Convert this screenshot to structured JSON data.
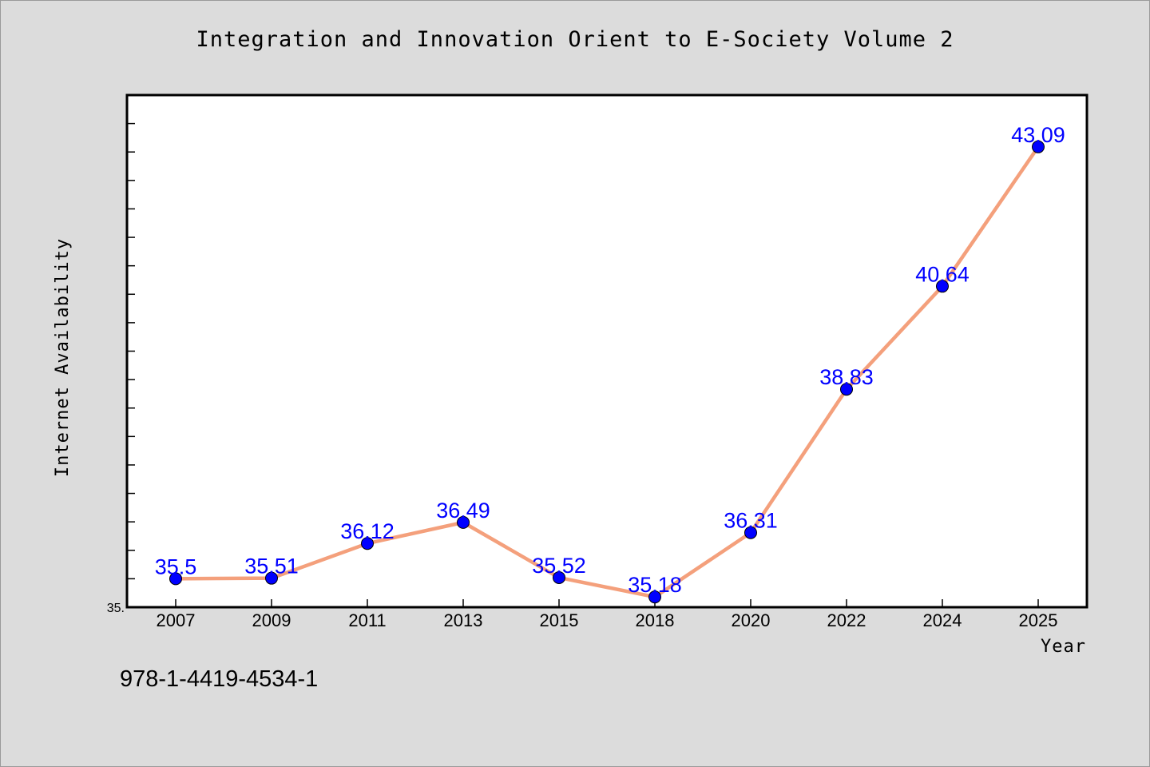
{
  "chart_data": {
    "type": "line",
    "title": "Integration and Innovation Orient to E-Society Volume 2",
    "xlabel": "Year",
    "ylabel": "Internet Availability",
    "categories": [
      "2007",
      "2009",
      "2011",
      "2013",
      "2015",
      "2018",
      "2020",
      "2022",
      "2024",
      "2025"
    ],
    "series": [
      {
        "values": [
          35.5,
          35.51,
          36.12,
          36.49,
          35.52,
          35.18,
          36.31,
          38.83,
          40.64,
          43.09
        ],
        "labels": [
          "35.5",
          "35.51",
          "36.12",
          "36.49",
          "35.52",
          "35.18",
          "36.31",
          "38.83",
          "40.64",
          "43.09"
        ]
      }
    ],
    "ylim": [
      35.0,
      44.0
    ],
    "y_tick_label": "35.",
    "grid": false,
    "line_color": "#f4a07c",
    "marker_color": "#0000ff",
    "label_color": "#0000ff"
  },
  "caption": "978-1-4419-4534-1"
}
